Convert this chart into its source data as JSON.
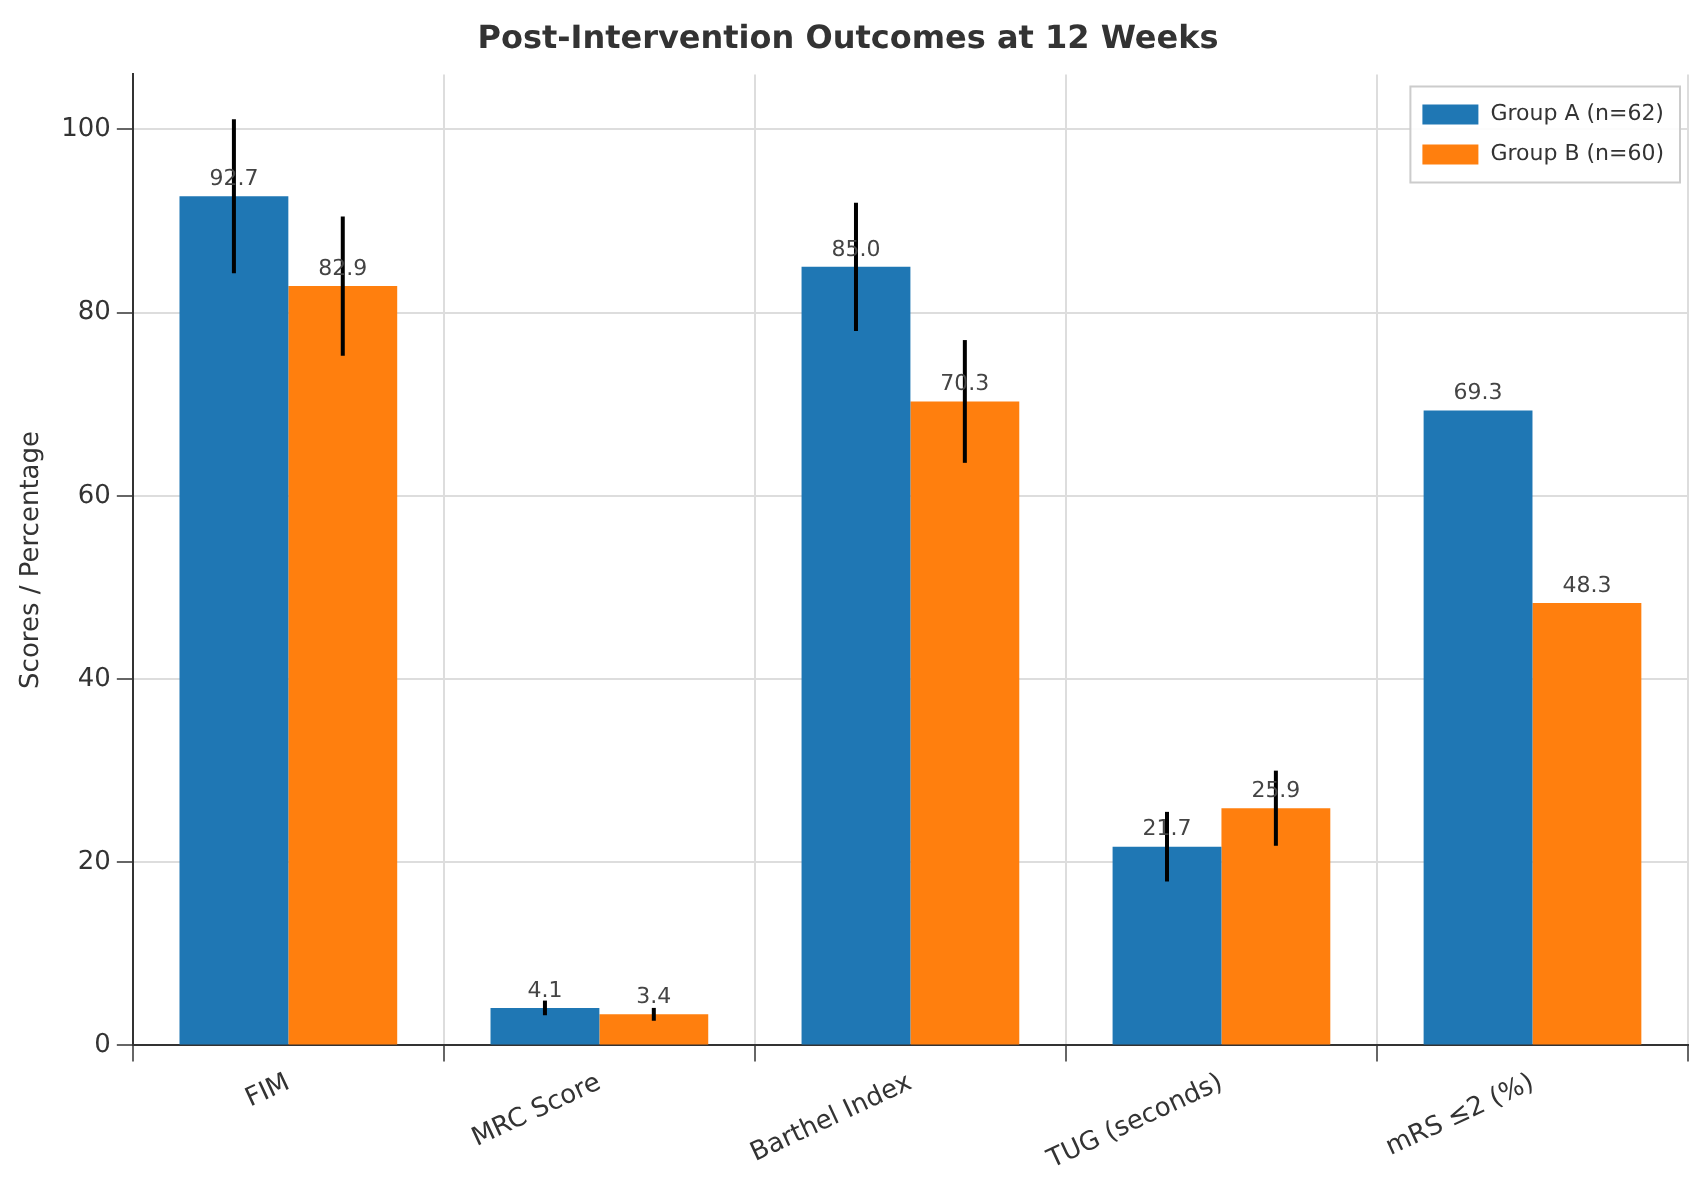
{
  "chart_data": {
    "type": "bar",
    "title": "Post-Intervention Outcomes at 12 Weeks",
    "ylabel": "Scores / Percentage",
    "categories": [
      "FIM",
      "MRC Score",
      "Barthel Index",
      "TUG (seconds)",
      "mRS ≤2 (%)"
    ],
    "series": [
      {
        "name": "Group A (n=62)",
        "color": "#1f77b4",
        "values": [
          92.7,
          4.1,
          85.0,
          21.7,
          69.3
        ],
        "errors": [
          8.4,
          0.8,
          7.0,
          3.8,
          null
        ],
        "value_labels": [
          "92.7",
          "4.1",
          "85.0",
          "21.7",
          "69.3"
        ]
      },
      {
        "name": "Group B (n=60)",
        "color": "#ff7f0e",
        "values": [
          82.9,
          3.4,
          70.3,
          25.9,
          48.3
        ],
        "errors": [
          7.6,
          0.7,
          6.7,
          4.1,
          null
        ],
        "value_labels": [
          "82.9",
          "3.4",
          "70.3",
          "25.9",
          "48.3"
        ]
      }
    ],
    "ylim": [
      0,
      106
    ],
    "yticks": [
      0,
      20,
      40,
      60,
      80,
      100
    ],
    "grid": true,
    "legend": "top right"
  }
}
